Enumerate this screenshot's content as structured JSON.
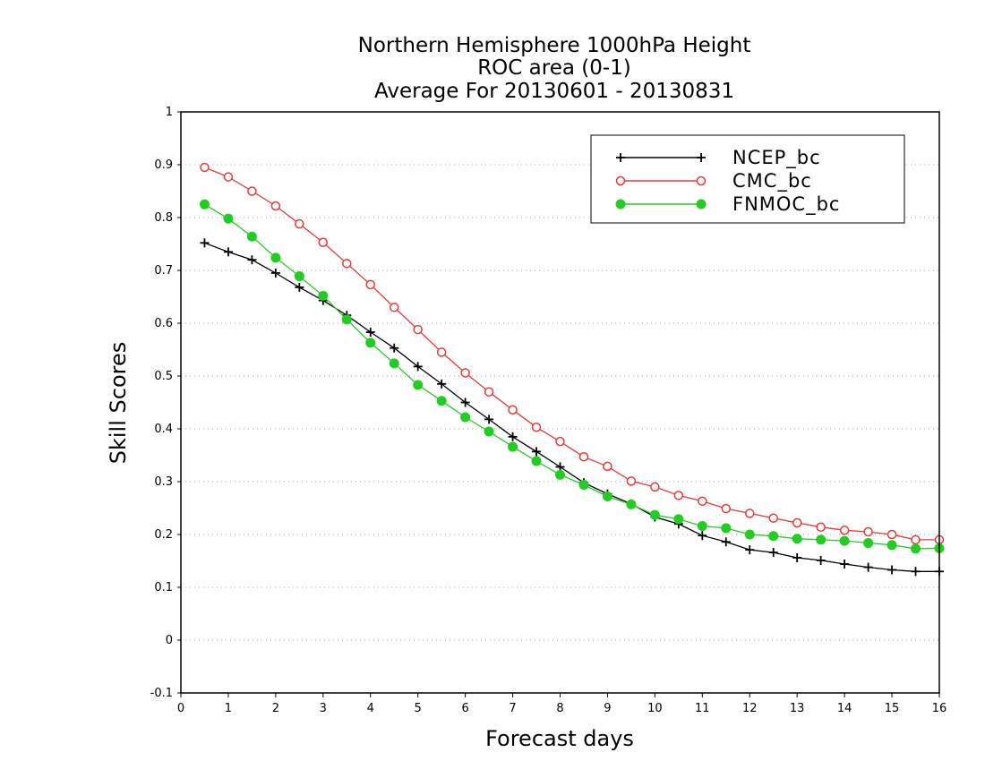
{
  "chart_data": {
    "type": "line",
    "title_lines": [
      "Northern Hemisphere 1000hPa Height",
      "ROC area (0-1)",
      "Average For 20130601 - 20130831"
    ],
    "xlabel": "Forecast days",
    "ylabel": "Skill Scores",
    "xlim": [
      0,
      16
    ],
    "ylim": [
      -0.1,
      1
    ],
    "x_ticks": [
      "0",
      "1",
      "2",
      "3",
      "4",
      "5",
      "6",
      "7",
      "8",
      "9",
      "10",
      "11",
      "12",
      "13",
      "14",
      "15",
      "16"
    ],
    "y_ticks": [
      "-0.1",
      "0",
      "0.1",
      "0.2",
      "0.3",
      "0.4",
      "0.5",
      "0.6",
      "0.7",
      "0.8",
      "0.9",
      "1"
    ],
    "grid": "horizontal dotted",
    "legend_position": "top-right",
    "x": [
      0.5,
      1,
      1.5,
      2,
      2.5,
      3,
      3.5,
      4,
      4.5,
      5,
      5.5,
      6,
      6.5,
      7,
      7.5,
      8,
      8.5,
      9,
      9.5,
      10,
      10.5,
      11,
      11.5,
      12,
      12.5,
      13,
      13.5,
      14,
      14.5,
      15,
      15.5,
      16
    ],
    "series": [
      {
        "name": "NCEP_bc",
        "color": "#000000",
        "marker": "plus",
        "values": [
          0.752,
          0.735,
          0.72,
          0.695,
          0.668,
          0.643,
          0.615,
          0.583,
          0.553,
          0.518,
          0.485,
          0.45,
          0.418,
          0.385,
          0.357,
          0.328,
          0.298,
          0.277,
          0.258,
          0.233,
          0.22,
          0.198,
          0.186,
          0.171,
          0.166,
          0.156,
          0.151,
          0.144,
          0.138,
          0.133,
          0.13,
          0.13
        ]
      },
      {
        "name": "CMC_bc",
        "color": "#e8383a",
        "marker": "open-circle",
        "values": [
          0.895,
          0.877,
          0.85,
          0.822,
          0.788,
          0.753,
          0.713,
          0.673,
          0.63,
          0.588,
          0.545,
          0.506,
          0.47,
          0.436,
          0.403,
          0.376,
          0.347,
          0.329,
          0.301,
          0.29,
          0.274,
          0.263,
          0.249,
          0.24,
          0.231,
          0.222,
          0.214,
          0.208,
          0.205,
          0.2,
          0.19,
          0.19
        ]
      },
      {
        "name": "FNMOC_bc",
        "color": "#22cc22",
        "marker": "filled-circle",
        "values": [
          0.825,
          0.798,
          0.764,
          0.724,
          0.689,
          0.652,
          0.607,
          0.563,
          0.524,
          0.483,
          0.453,
          0.422,
          0.395,
          0.366,
          0.339,
          0.313,
          0.294,
          0.272,
          0.257,
          0.237,
          0.229,
          0.216,
          0.212,
          0.2,
          0.197,
          0.192,
          0.19,
          0.188,
          0.184,
          0.18,
          0.173,
          0.174
        ]
      }
    ]
  }
}
